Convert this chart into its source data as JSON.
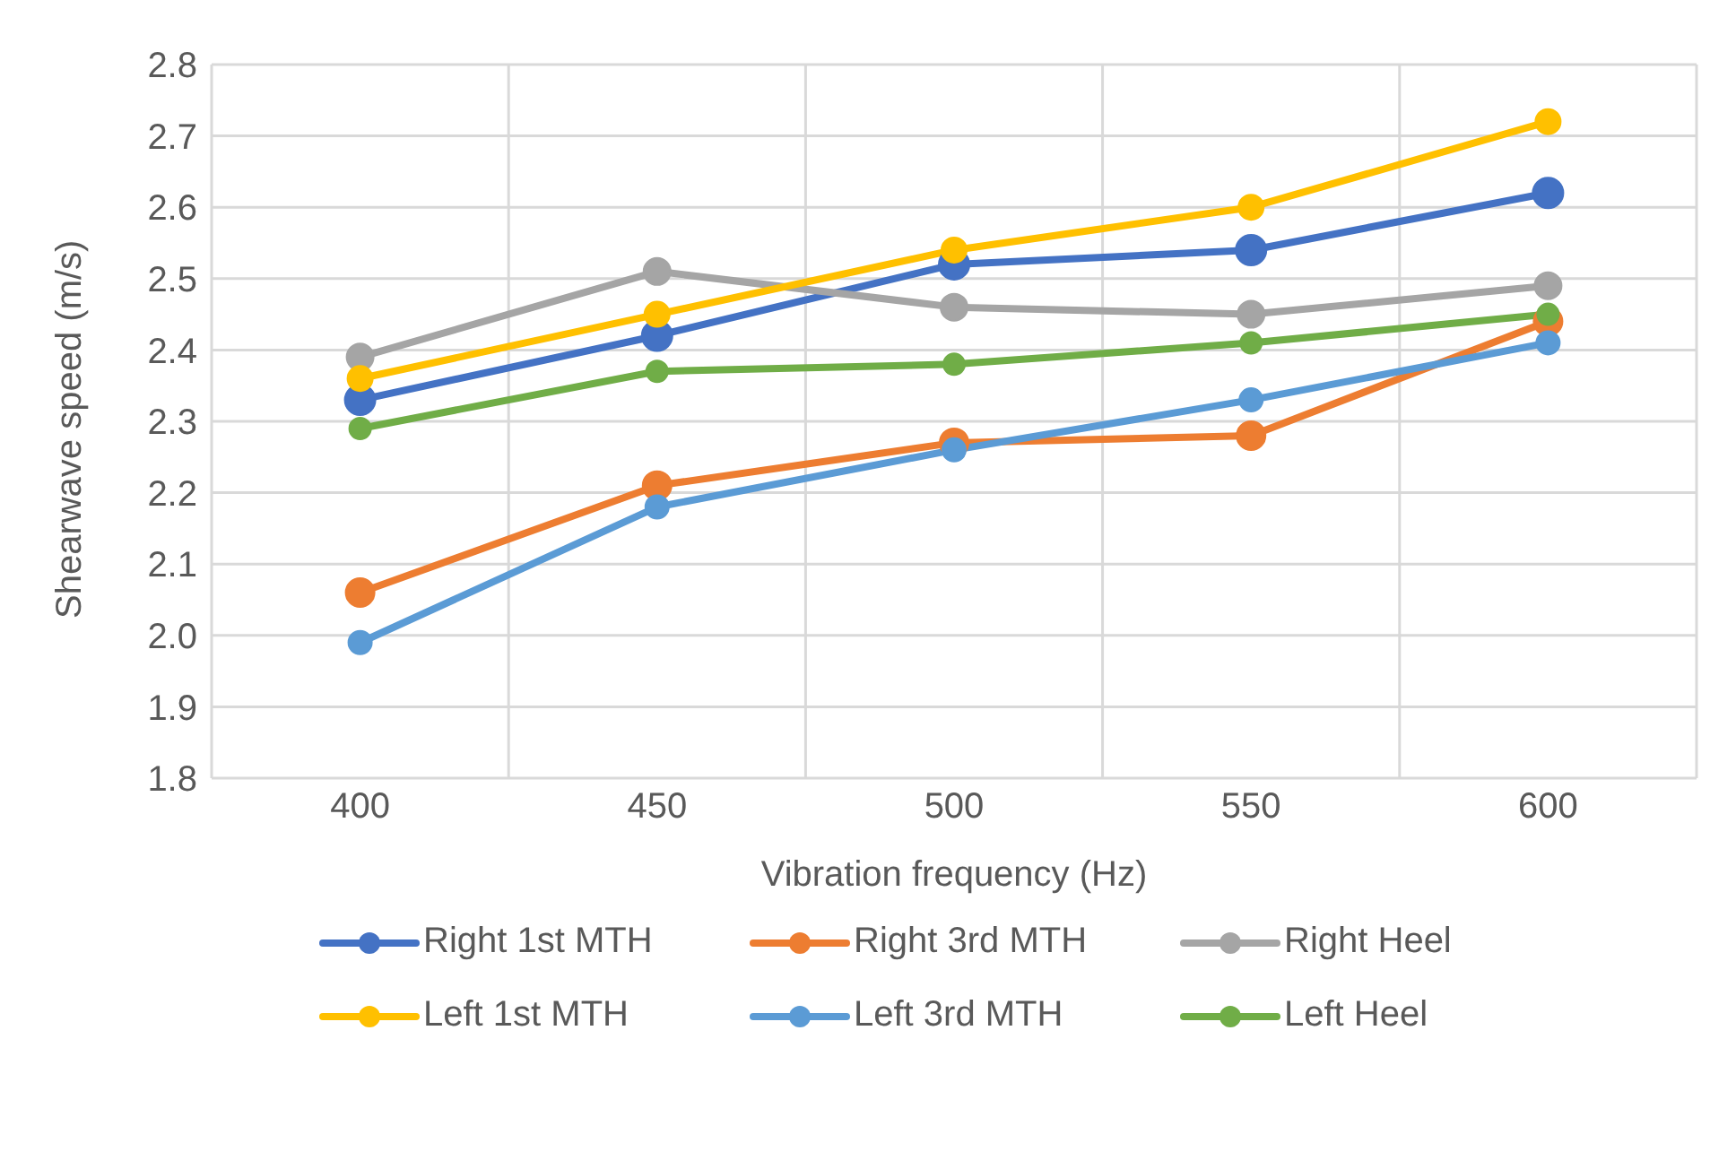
{
  "chart_data": {
    "type": "line",
    "xlabel": "Vibration frequency (Hz)",
    "ylabel": "Shearwave speed (m/s)",
    "categories": [
      "400",
      "450",
      "500",
      "550",
      "600"
    ],
    "series": [
      {
        "name": "Right 1st MTH",
        "color": "#4472c4",
        "values": [
          2.33,
          2.42,
          2.52,
          2.54,
          2.62
        ]
      },
      {
        "name": "Right 3rd MTH",
        "color": "#ed7d31",
        "values": [
          2.06,
          2.21,
          2.27,
          2.28,
          2.44
        ]
      },
      {
        "name": "Right Heel",
        "color": "#a5a5a5",
        "values": [
          2.39,
          2.51,
          2.46,
          2.45,
          2.49
        ]
      },
      {
        "name": "Left 1st MTH",
        "color": "#ffc000",
        "values": [
          2.36,
          2.45,
          2.54,
          2.6,
          2.72
        ]
      },
      {
        "name": "Left 3rd MTH",
        "color": "#5b9bd5",
        "values": [
          1.99,
          2.18,
          2.26,
          2.33,
          2.41
        ]
      },
      {
        "name": "Left Heel",
        "color": "#70ad47",
        "values": [
          2.29,
          2.37,
          2.38,
          2.41,
          2.45
        ]
      }
    ],
    "ylim": [
      1.8,
      2.8
    ],
    "yticks": [
      {
        "value": 1.8,
        "label": "1.8"
      },
      {
        "value": 1.9,
        "label": "1.9"
      },
      {
        "value": 2.0,
        "label": "2.0"
      },
      {
        "value": 2.1,
        "label": "2.1"
      },
      {
        "value": 2.2,
        "label": "2.2"
      },
      {
        "value": 2.3,
        "label": "2.3"
      },
      {
        "value": 2.4,
        "label": "2.4"
      },
      {
        "value": 2.5,
        "label": "2.5"
      },
      {
        "value": 2.6,
        "label": "2.6"
      },
      {
        "value": 2.7,
        "label": "2.7"
      },
      {
        "value": 2.8,
        "label": "2.8"
      }
    ],
    "grid": true,
    "legend": "bottom",
    "marker": "circle",
    "line_style": "solid"
  }
}
